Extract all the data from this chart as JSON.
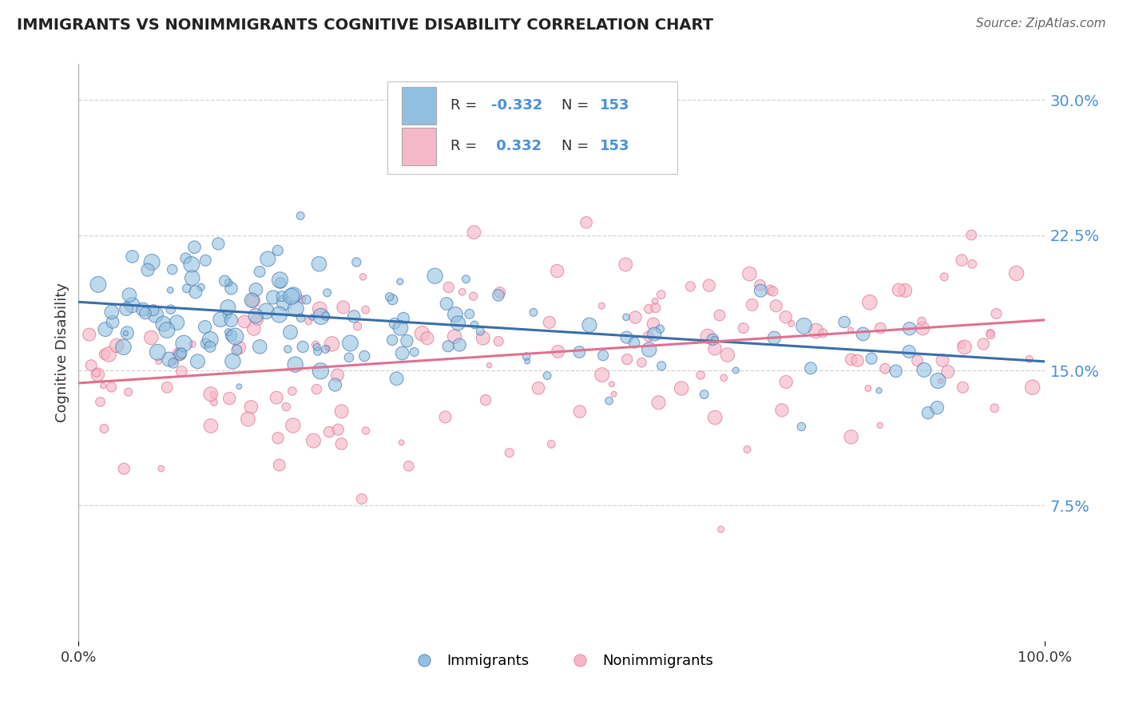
{
  "title": "IMMIGRANTS VS NONIMMIGRANTS COGNITIVE DISABILITY CORRELATION CHART",
  "source": "Source: ZipAtlas.com",
  "ylabel": "Cognitive Disability",
  "xlim": [
    0,
    1.0
  ],
  "ylim": [
    0,
    0.32
  ],
  "yticks": [
    0.075,
    0.15,
    0.225,
    0.3
  ],
  "ytick_labels": [
    "7.5%",
    "15.0%",
    "22.5%",
    "30.0%"
  ],
  "xtick_labels": [
    "0.0%",
    "100.0%"
  ],
  "xticks": [
    0.0,
    1.0
  ],
  "blue_R": -0.332,
  "pink_R": 0.332,
  "N": 153,
  "blue_color": "#92c0e0",
  "pink_color": "#f5b8c8",
  "blue_line_color": "#3a6fa8",
  "pink_line_color": "#e07090",
  "blue_label": "Immigrants",
  "pink_label": "Nonimmigrants",
  "title_color": "#222222",
  "source_color": "#666666",
  "ytick_color": "#4a90d9",
  "legend_text_color": "#333333",
  "legend_value_color": "#4a90d9",
  "background_color": "#ffffff",
  "grid_color": "#c8c8c8",
  "seed": 42,
  "n_blue": 153,
  "n_pink": 153,
  "blue_trend_start_y": 0.188,
  "blue_trend_end_y": 0.155,
  "pink_trend_start_y": 0.143,
  "pink_trend_end_y": 0.178
}
